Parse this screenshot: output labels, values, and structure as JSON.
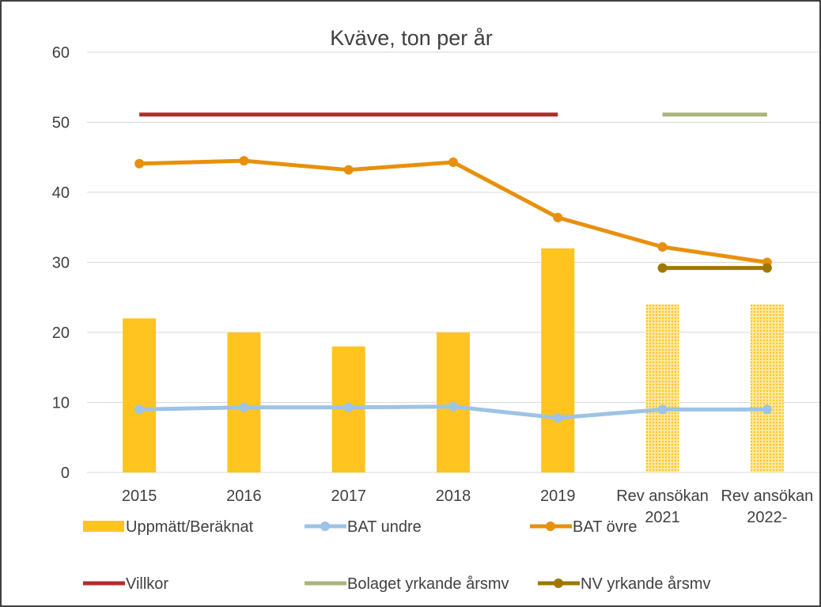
{
  "chart_data": {
    "type": "bar",
    "title": "Kväve, ton per år",
    "categories": [
      "2015",
      "2016",
      "2017",
      "2018",
      "2019",
      "Rev ansökan 2021",
      "Rev ansökan 2022-"
    ],
    "ylim": [
      0,
      60
    ],
    "yticks": [
      0,
      10,
      20,
      30,
      40,
      50,
      60
    ],
    "grid": true,
    "legend": "bottom",
    "series": [
      {
        "name": "Uppmätt/Beräknat",
        "type": "bar",
        "color": "#FFC420",
        "patterned": [
          false,
          false,
          false,
          false,
          false,
          true,
          true
        ],
        "values": [
          22,
          20,
          18,
          20,
          32,
          24,
          24
        ]
      },
      {
        "name": "BAT undre",
        "type": "line",
        "color": "#9DC3E6",
        "markers": true,
        "values": [
          9,
          9.3,
          9.3,
          9.4,
          7.8,
          9,
          9
        ]
      },
      {
        "name": "BAT övre",
        "type": "line",
        "color": "#E8900C",
        "markers": true,
        "values": [
          44.1,
          44.5,
          43.2,
          44.3,
          36.4,
          32.2,
          30
        ]
      },
      {
        "name": "Villkor",
        "type": "line",
        "color": "#B22C2C",
        "markers": false,
        "values": [
          51.1,
          51.1,
          51.1,
          51.1,
          51.1,
          null,
          null
        ]
      },
      {
        "name": "Bolaget yrkande årsmv",
        "type": "line",
        "color": "#A9B57A",
        "markers": false,
        "values": [
          null,
          null,
          null,
          null,
          null,
          51.1,
          51.1
        ]
      },
      {
        "name": "NV yrkande årsmv",
        "type": "line",
        "color": "#A07800",
        "markers": true,
        "values": [
          null,
          null,
          null,
          null,
          null,
          29.2,
          29.2
        ]
      }
    ]
  }
}
